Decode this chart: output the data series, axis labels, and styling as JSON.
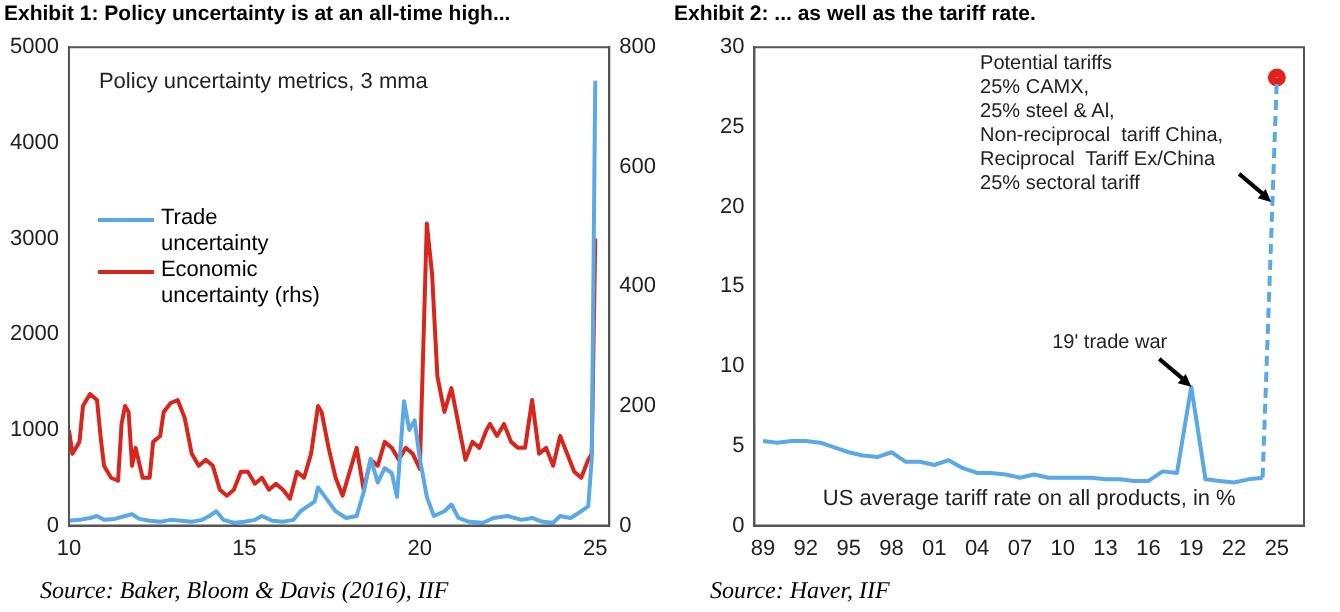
{
  "chart_data": [
    {
      "type": "line",
      "title": "Exhibit 1: Policy uncertainty is at an all-time high...",
      "xlim": [
        10,
        25.4
      ],
      "xticks": [
        10,
        15,
        20,
        25
      ],
      "ylim": [
        0,
        5000
      ],
      "yticks": [
        0,
        1000,
        2000,
        3000,
        4000,
        5000
      ],
      "y2lim": [
        0,
        800
      ],
      "y2ticks": [
        0,
        200,
        400,
        600,
        800
      ],
      "grid": false,
      "legend": "left",
      "marker": "none",
      "annotations": [
        "Policy uncertainty metrics, 3 mma",
        "Source: Baker, Bloom & Davis (2016), IIF"
      ],
      "series": [
        {
          "name": "Trade uncertainty",
          "color": "#5aa9e6",
          "x": [
            10.0,
            10.3,
            10.6,
            10.8,
            11.0,
            11.3,
            11.6,
            11.8,
            12.0,
            12.3,
            12.6,
            12.9,
            13.2,
            13.5,
            13.8,
            14.0,
            14.2,
            14.4,
            14.7,
            15.0,
            15.3,
            15.5,
            15.8,
            16.1,
            16.4,
            16.6,
            16.8,
            17.0,
            17.1,
            17.3,
            17.6,
            17.9,
            18.2,
            18.4,
            18.6,
            18.8,
            19.0,
            19.2,
            19.35,
            19.55,
            19.7,
            19.85,
            20.0,
            20.2,
            20.4,
            20.7,
            20.9,
            21.1,
            21.4,
            21.8,
            22.1,
            22.5,
            22.9,
            23.2,
            23.5,
            23.8,
            24.0,
            24.3,
            24.6,
            24.8,
            24.9,
            25.0
          ],
          "values": [
            50,
            60,
            80,
            100,
            60,
            70,
            100,
            120,
            70,
            50,
            40,
            60,
            50,
            40,
            60,
            100,
            150,
            60,
            30,
            40,
            60,
            100,
            50,
            40,
            60,
            150,
            200,
            250,
            400,
            300,
            150,
            80,
            100,
            350,
            700,
            450,
            600,
            550,
            300,
            1300,
            1000,
            1100,
            700,
            300,
            100,
            150,
            220,
            80,
            40,
            30,
            80,
            100,
            60,
            80,
            40,
            30,
            100,
            80,
            150,
            200,
            700,
            4650
          ]
        },
        {
          "name": "Economic uncertainty (rhs)",
          "color": "#d7261e",
          "axis": "y2",
          "x": [
            10.0,
            10.1,
            10.3,
            10.4,
            10.6,
            10.8,
            10.9,
            11.0,
            11.2,
            11.4,
            11.5,
            11.6,
            11.7,
            11.8,
            11.9,
            12.1,
            12.3,
            12.4,
            12.6,
            12.7,
            12.9,
            13.1,
            13.3,
            13.5,
            13.7,
            13.9,
            14.1,
            14.3,
            14.5,
            14.7,
            14.9,
            15.1,
            15.3,
            15.5,
            15.7,
            15.9,
            16.1,
            16.3,
            16.5,
            16.7,
            16.9,
            17.1,
            17.2,
            17.4,
            17.6,
            17.8,
            18.0,
            18.2,
            18.4,
            18.6,
            18.8,
            19.0,
            19.2,
            19.4,
            19.6,
            19.8,
            20.0,
            20.1,
            20.2,
            20.35,
            20.5,
            20.7,
            20.9,
            21.1,
            21.3,
            21.5,
            21.7,
            21.9,
            22.0,
            22.2,
            22.4,
            22.6,
            22.8,
            23.0,
            23.2,
            23.4,
            23.6,
            23.8,
            24.0,
            24.2,
            24.4,
            24.6,
            24.8,
            24.9,
            25.0
          ],
          "values": [
            160,
            120,
            140,
            200,
            220,
            210,
            150,
            100,
            80,
            75,
            170,
            200,
            190,
            100,
            130,
            80,
            80,
            140,
            150,
            190,
            205,
            210,
            180,
            120,
            100,
            110,
            100,
            60,
            50,
            60,
            90,
            90,
            70,
            80,
            60,
            70,
            60,
            45,
            90,
            80,
            120,
            200,
            190,
            130,
            80,
            50,
            90,
            130,
            60,
            110,
            100,
            140,
            130,
            110,
            130,
            120,
            95,
            300,
            505,
            420,
            250,
            190,
            230,
            170,
            110,
            140,
            130,
            160,
            170,
            150,
            170,
            140,
            130,
            130,
            210,
            120,
            130,
            100,
            150,
            120,
            90,
            80,
            110,
            120,
            480
          ]
        }
      ]
    },
    {
      "type": "line",
      "title": "Exhibit 2: ... as well as the tariff rate.",
      "xlim": [
        1988.4,
        2026.9
      ],
      "xticks": [
        {
          "value": 1989,
          "label": "89"
        },
        {
          "value": 1992,
          "label": "92"
        },
        {
          "value": 1995,
          "label": "95"
        },
        {
          "value": 1998,
          "label": "98"
        },
        {
          "value": 2001,
          "label": "01"
        },
        {
          "value": 2004,
          "label": "04"
        },
        {
          "value": 2007,
          "label": "07"
        },
        {
          "value": 2010,
          "label": "10"
        },
        {
          "value": 2013,
          "label": "13"
        },
        {
          "value": 2016,
          "label": "16"
        },
        {
          "value": 2019,
          "label": "19"
        },
        {
          "value": 2022,
          "label": "22"
        },
        {
          "value": 2025,
          "label": "25"
        }
      ],
      "ylim": [
        0,
        30
      ],
      "yticks": [
        0,
        5,
        10,
        15,
        20,
        25,
        30
      ],
      "grid": false,
      "marker": "none",
      "annotations": [
        "US average tariff rate on all products, in %",
        "Source: Haver, IIF",
        {
          "text": "19' trade war",
          "x": 2019,
          "y": 8.7
        },
        {
          "text": "Potential tariffs\n25% CAMX,\n25% steel & Al,\nNon-reciprocal  tariff China,\nReciprocal  Tariff Ex/China\n25% sectoral tariff",
          "x": 2024.6,
          "y": 20.3
        }
      ],
      "series": [
        {
          "color": "#5aa9e6",
          "x": [
            1989,
            1990,
            1991,
            1992,
            1993,
            1994,
            1995,
            1996,
            1997,
            1998,
            1999,
            2000,
            2001,
            2002,
            2003,
            2004,
            2005,
            2006,
            2007,
            2008,
            2009,
            2010,
            2011,
            2012,
            2013,
            2014,
            2015,
            2016,
            2017,
            2018,
            2019,
            2020,
            2021,
            2022,
            2023,
            2024
          ],
          "values": [
            5.3,
            5.2,
            5.3,
            5.3,
            5.2,
            4.9,
            4.6,
            4.4,
            4.3,
            4.6,
            4.0,
            4.0,
            3.8,
            4.1,
            3.6,
            3.3,
            3.3,
            3.2,
            3.0,
            3.2,
            3.0,
            3.0,
            3.0,
            3.0,
            2.9,
            2.9,
            2.8,
            2.8,
            3.4,
            3.3,
            8.7,
            2.9,
            2.8,
            2.7,
            2.9,
            3.0
          ]
        },
        {
          "color": "#5aa9e6",
          "line_style": "dashed",
          "x": [
            2024,
            2025
          ],
          "values": [
            3.0,
            28.1
          ]
        },
        {
          "type": "scatter",
          "color": "#e3221a",
          "marker": "circle",
          "x": [
            2025
          ],
          "values": [
            28.1
          ]
        }
      ]
    }
  ]
}
